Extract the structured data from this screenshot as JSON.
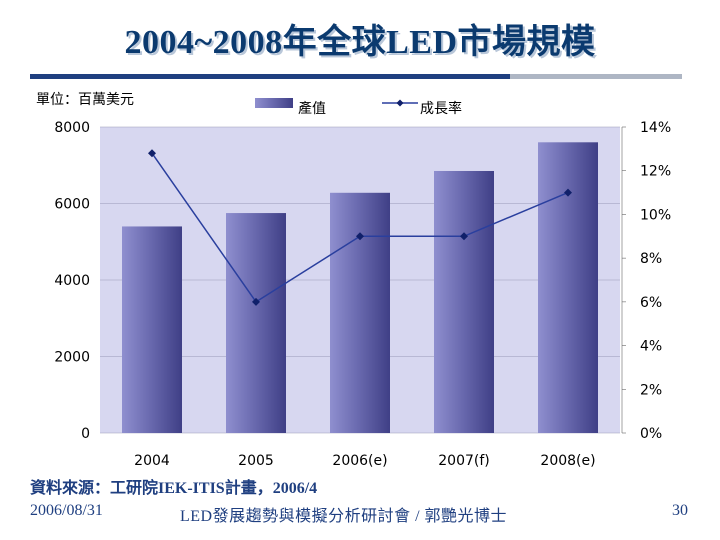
{
  "slide": {
    "title": "2004~2008年全球LED市場規模",
    "source": "資料來源：工研院IEK-ITIS計畫，2006/4",
    "footer_date": "2006/08/31",
    "footer_center": "LED發展趨勢與模擬分析研討會 / 郭艷光博士",
    "page_number": "30"
  },
  "colors": {
    "title": "#0b3a6f",
    "rule_dark": "#1f3f80",
    "rule_light": "#aeb6c4",
    "plot_bg": "#d7d7f0",
    "bar": "#6b6bb0",
    "line": "#2a3f9e",
    "footer": "#1f3f80"
  },
  "chart_data": {
    "type": "bar+line",
    "unit_label": "單位：百萬美元",
    "categories": [
      "2004",
      "2005",
      "2006(e)",
      "2007(f)",
      "2008(e)"
    ],
    "series": [
      {
        "name": "產值",
        "type": "bar",
        "axis": "left",
        "values": [
          5400,
          5750,
          6280,
          6850,
          7600
        ]
      },
      {
        "name": "成長率",
        "type": "line",
        "axis": "right",
        "values": [
          12.8,
          6.0,
          9.0,
          9.0,
          11.0
        ]
      }
    ],
    "y_left": {
      "min": 0,
      "max": 8000,
      "ticks": [
        0,
        2000,
        4000,
        6000,
        8000
      ],
      "tick_labels": [
        "0",
        "2000",
        "4000",
        "6000",
        "8000"
      ]
    },
    "y_right": {
      "min": 0,
      "max": 14,
      "ticks": [
        0,
        2,
        4,
        6,
        8,
        10,
        12,
        14
      ],
      "tick_labels": [
        "0%",
        "2%",
        "4%",
        "6%",
        "8%",
        "10%",
        "12%",
        "14%"
      ]
    },
    "legend_position": "top"
  }
}
